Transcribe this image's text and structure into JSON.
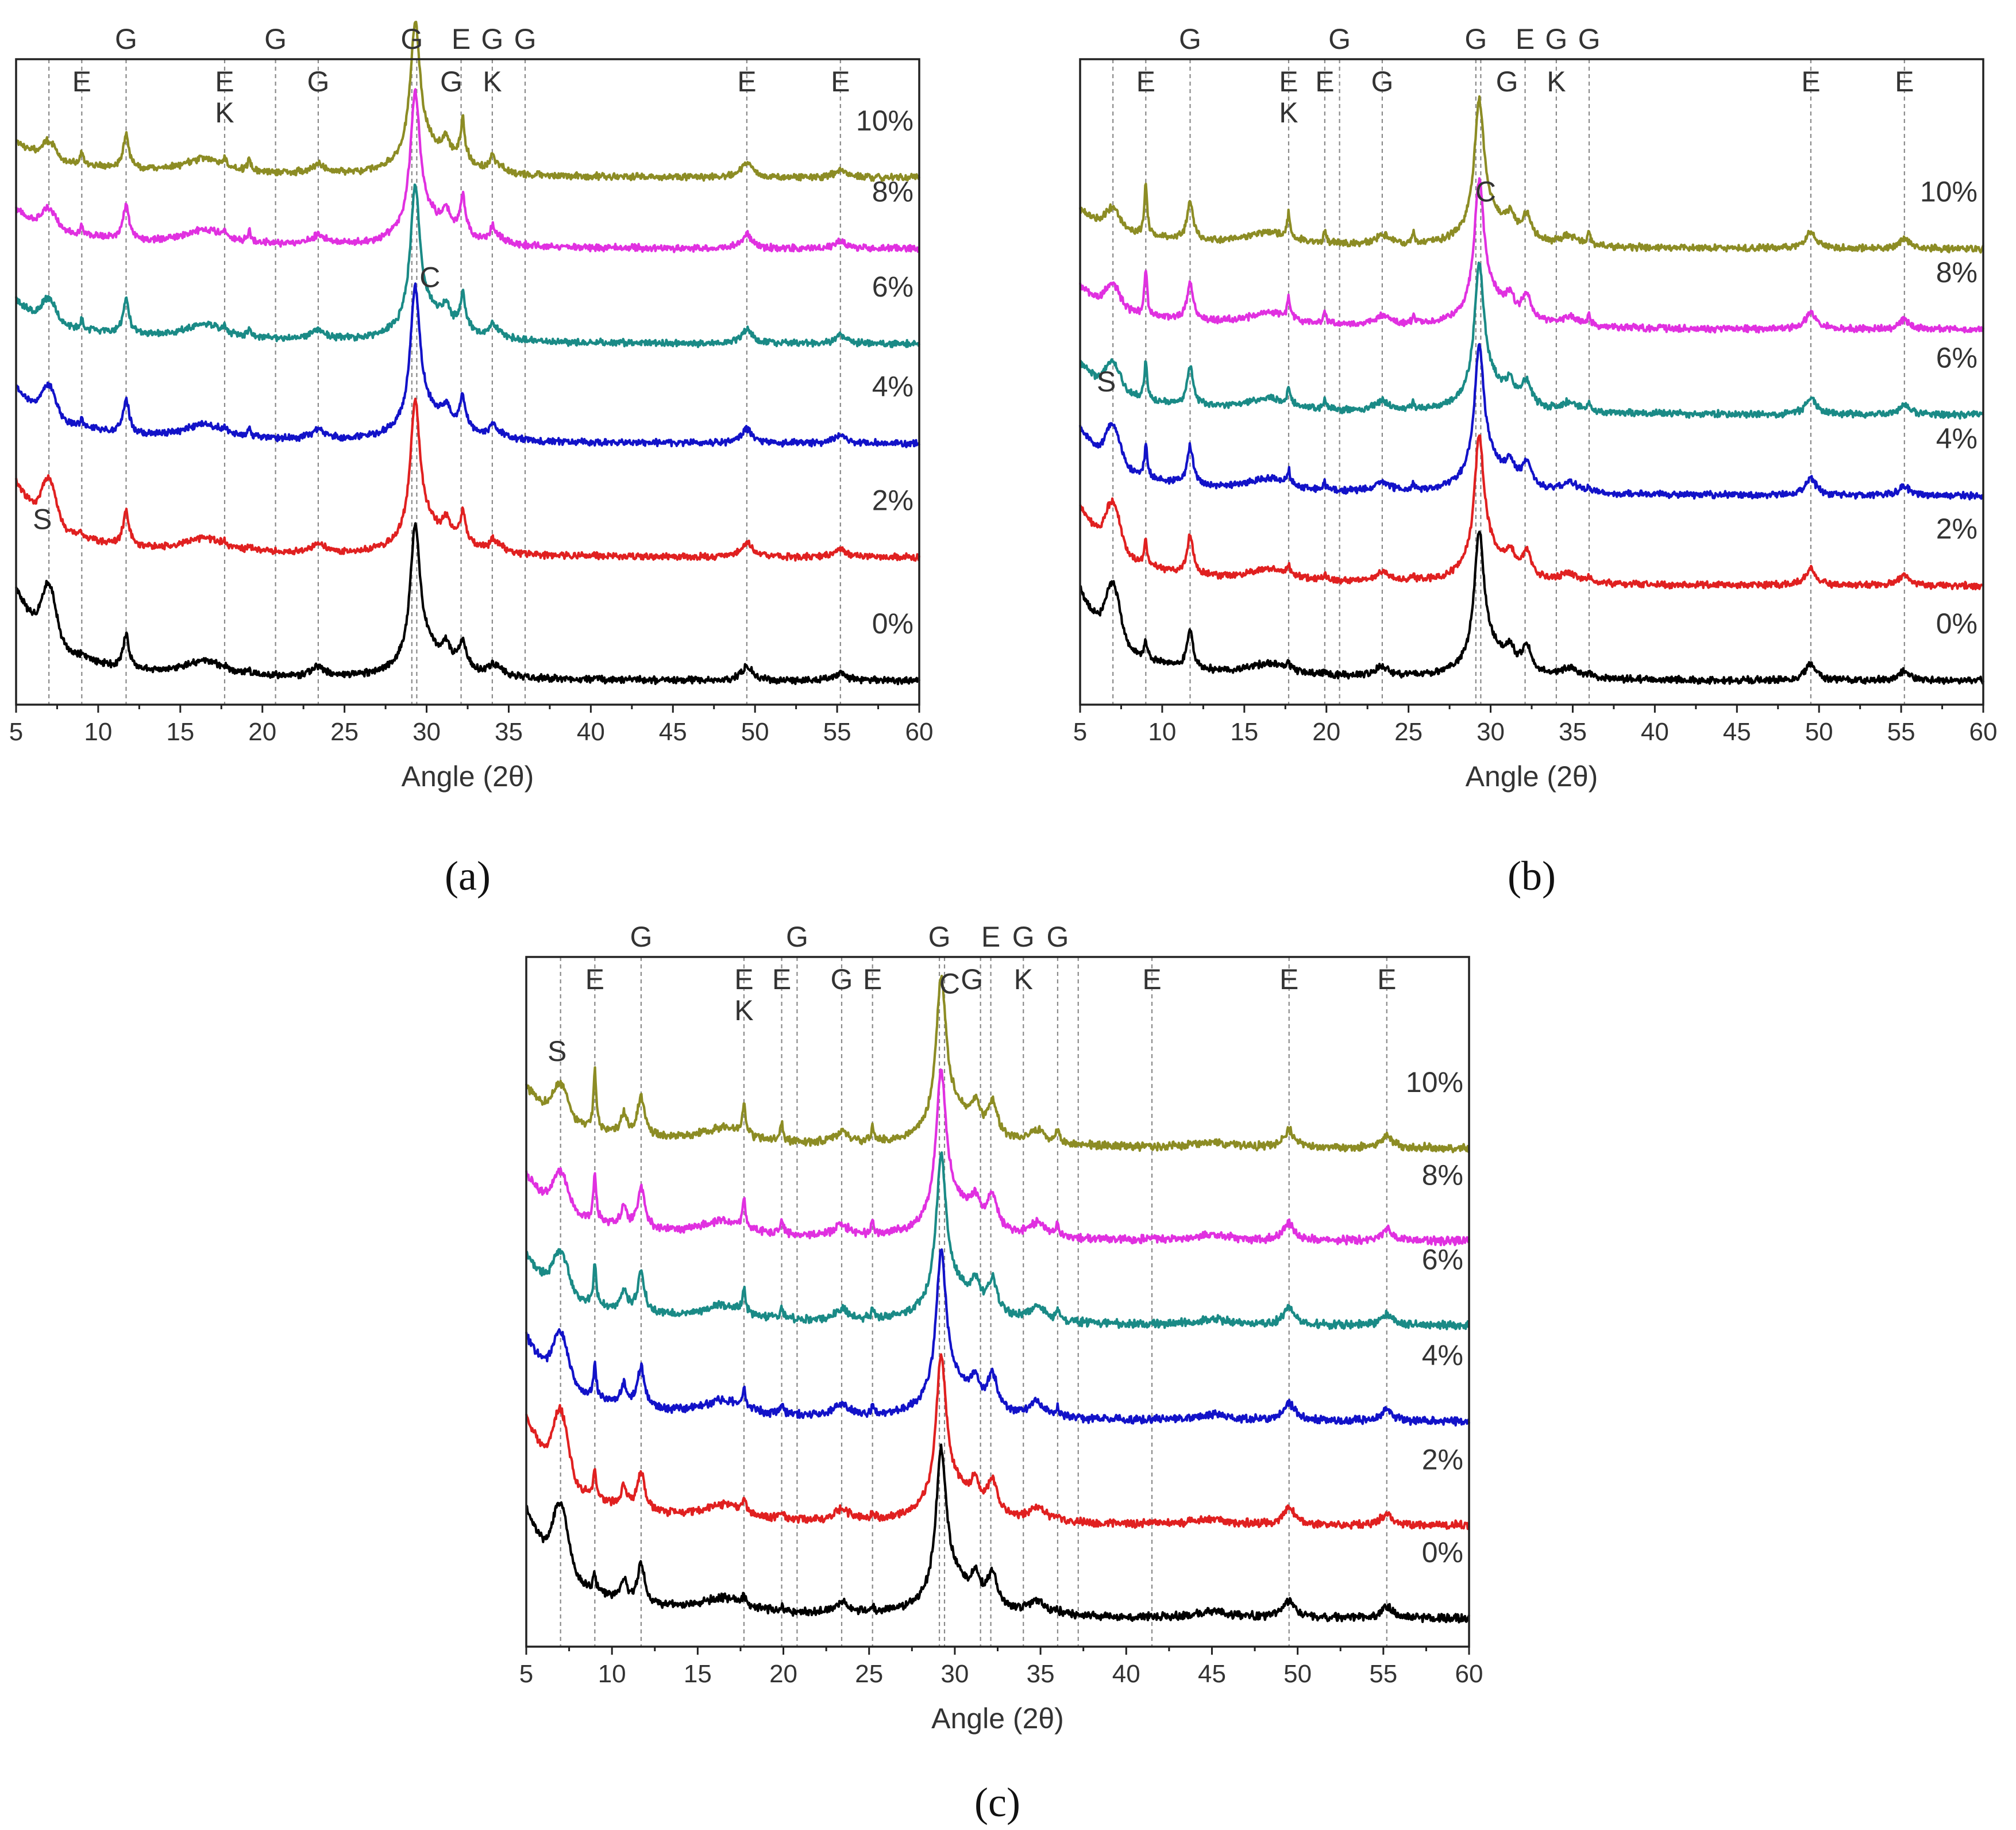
{
  "chart_data": [
    {
      "id": "a",
      "type": "line",
      "panel_label": "(a)",
      "xlabel": "Angle (2θ)",
      "ylabel": "",
      "xlim": [
        5,
        60
      ],
      "xticks": [
        5,
        10,
        15,
        20,
        25,
        30,
        35,
        40,
        45,
        50,
        55,
        60
      ],
      "reference_lines": [
        7.0,
        9.0,
        11.7,
        17.7,
        20.8,
        23.4,
        29.1,
        29.4,
        32.1,
        34.0,
        36.0,
        49.5,
        55.2
      ],
      "peak_labels": [
        {
          "text": "G",
          "x": 11.7,
          "row": 0
        },
        {
          "text": "G",
          "x": 20.8,
          "row": 0
        },
        {
          "text": "G",
          "x": 29.1,
          "row": 0
        },
        {
          "text": "E",
          "x": 32.1,
          "row": 0
        },
        {
          "text": "G",
          "x": 34.0,
          "row": 0
        },
        {
          "text": "G",
          "x": 36.0,
          "row": 0
        },
        {
          "text": "E",
          "x": 9.0,
          "row": 1
        },
        {
          "text": "E",
          "x": 17.7,
          "row": 1
        },
        {
          "text": "G",
          "x": 23.4,
          "row": 1
        },
        {
          "text": "G",
          "x": 31.5,
          "row": 1
        },
        {
          "text": "K",
          "x": 34.0,
          "row": 1
        },
        {
          "text": "E",
          "x": 49.5,
          "row": 1
        },
        {
          "text": "E",
          "x": 55.2,
          "row": 1
        },
        {
          "text": "K",
          "x": 17.7,
          "row": 2
        }
      ],
      "annotations": [
        {
          "text": "C",
          "x": 30.2,
          "y": 1.66
        },
        {
          "text": "S",
          "x": 6.6,
          "y": 0.64
        }
      ],
      "series": [
        {
          "name": "0%",
          "color": "#000000",
          "offset": 0.0,
          "s_strength": 1.0
        },
        {
          "name": "2%",
          "color": "#e02020",
          "offset": 0.52,
          "s_strength": 0.8
        },
        {
          "name": "4%",
          "color": "#1212c8",
          "offset": 1.0,
          "s_strength": 0.55
        },
        {
          "name": "6%",
          "color": "#1a8a86",
          "offset": 1.42,
          "s_strength": 0.4
        },
        {
          "name": "8%",
          "color": "#e030e0",
          "offset": 1.82,
          "s_strength": 0.35
        },
        {
          "name": "10%",
          "color": "#8c8c24",
          "offset": 2.12,
          "s_strength": 0.3
        }
      ],
      "peaks": [
        {
          "x": 11.7,
          "h": 0.14,
          "w": 0.22
        },
        {
          "x": 16.5,
          "h": 0.06,
          "w": 1.5
        },
        {
          "x": 23.4,
          "h": 0.04,
          "w": 0.5
        },
        {
          "x": 29.3,
          "h": 0.55,
          "w": 0.35
        },
        {
          "x": 29.9,
          "h": 0.12,
          "w": 1.4
        },
        {
          "x": 31.2,
          "h": 0.08,
          "w": 0.3
        },
        {
          "x": 32.2,
          "h": 0.1,
          "w": 0.35
        },
        {
          "x": 34.2,
          "h": 0.04,
          "w": 0.6
        },
        {
          "x": 49.5,
          "h": 0.06,
          "w": 0.4
        },
        {
          "x": 55.2,
          "h": 0.035,
          "w": 0.4
        }
      ],
      "ettringite_sharp": [
        {
          "x": 9.0,
          "h": 0.05
        },
        {
          "x": 17.7,
          "h": 0.03
        },
        {
          "x": 19.2,
          "h": 0.05
        },
        {
          "x": 32.2,
          "h": 0.1
        },
        {
          "x": 34.0,
          "h": 0.05
        }
      ],
      "ylim": [
        -0.1,
        2.62
      ]
    },
    {
      "id": "b",
      "type": "line",
      "panel_label": "(b)",
      "xlabel": "Angle (2θ)",
      "ylabel": "",
      "xlim": [
        5,
        60
      ],
      "xticks": [
        5,
        10,
        15,
        20,
        25,
        30,
        35,
        40,
        45,
        50,
        55,
        60
      ],
      "reference_lines": [
        7.0,
        9.0,
        11.7,
        17.7,
        19.9,
        20.8,
        23.4,
        29.1,
        29.4,
        32.1,
        34.0,
        36.0,
        49.5,
        55.2
      ],
      "peak_labels": [
        {
          "text": "G",
          "x": 11.7,
          "row": 0
        },
        {
          "text": "G",
          "x": 20.8,
          "row": 0
        },
        {
          "text": "G",
          "x": 29.1,
          "row": 0
        },
        {
          "text": "E",
          "x": 32.1,
          "row": 0
        },
        {
          "text": "G",
          "x": 34.0,
          "row": 0
        },
        {
          "text": "G",
          "x": 36.0,
          "row": 0
        },
        {
          "text": "E",
          "x": 9.0,
          "row": 1
        },
        {
          "text": "E",
          "x": 17.7,
          "row": 1
        },
        {
          "text": "E",
          "x": 19.9,
          "row": 1
        },
        {
          "text": "G",
          "x": 23.4,
          "row": 1
        },
        {
          "text": "G",
          "x": 31.0,
          "row": 1
        },
        {
          "text": "K",
          "x": 34.0,
          "row": 1
        },
        {
          "text": "E",
          "x": 49.5,
          "row": 1
        },
        {
          "text": "E",
          "x": 55.2,
          "row": 1
        },
        {
          "text": "K",
          "x": 17.7,
          "row": 2
        }
      ],
      "annotations": [
        {
          "text": "C",
          "x": 29.7,
          "y": 2.02
        },
        {
          "text": "S",
          "x": 6.6,
          "y": 1.22
        }
      ],
      "series": [
        {
          "name": "0%",
          "color": "#000000",
          "offset": 0.0,
          "s_strength": 1.0
        },
        {
          "name": "2%",
          "color": "#e02020",
          "offset": 0.4,
          "s_strength": 0.85
        },
        {
          "name": "4%",
          "color": "#1212c8",
          "offset": 0.78,
          "s_strength": 0.7
        },
        {
          "name": "6%",
          "color": "#1a8a86",
          "offset": 1.12,
          "s_strength": 0.5
        },
        {
          "name": "8%",
          "color": "#e030e0",
          "offset": 1.48,
          "s_strength": 0.4
        },
        {
          "name": "10%",
          "color": "#8c8c24",
          "offset": 1.82,
          "s_strength": 0.35
        }
      ],
      "peaks": [
        {
          "x": 11.7,
          "h": 0.16,
          "w": 0.22
        },
        {
          "x": 16.5,
          "h": 0.05,
          "w": 1.5
        },
        {
          "x": 23.4,
          "h": 0.04,
          "w": 0.5
        },
        {
          "x": 29.3,
          "h": 0.52,
          "w": 0.35
        },
        {
          "x": 29.9,
          "h": 0.12,
          "w": 1.4
        },
        {
          "x": 31.2,
          "h": 0.07,
          "w": 0.3
        },
        {
          "x": 32.2,
          "h": 0.1,
          "w": 0.35
        },
        {
          "x": 34.8,
          "h": 0.04,
          "w": 0.6
        },
        {
          "x": 49.5,
          "h": 0.07,
          "w": 0.4
        },
        {
          "x": 55.2,
          "h": 0.04,
          "w": 0.4
        }
      ],
      "ettringite_sharp": [
        {
          "x": 9.0,
          "h": 0.22
        },
        {
          "x": 17.7,
          "h": 0.1
        },
        {
          "x": 19.9,
          "h": 0.05
        },
        {
          "x": 25.3,
          "h": 0.04
        },
        {
          "x": 36.0,
          "h": 0.05
        }
      ],
      "ylim": [
        -0.1,
        2.62
      ]
    },
    {
      "id": "c",
      "type": "line",
      "panel_label": "(c)",
      "xlabel": "Angle (2θ)",
      "ylabel": "",
      "xlim": [
        5,
        60
      ],
      "xticks": [
        5,
        10,
        15,
        20,
        25,
        30,
        35,
        40,
        45,
        50,
        55,
        60
      ],
      "reference_lines": [
        7.0,
        9.0,
        11.7,
        17.7,
        19.9,
        20.8,
        23.4,
        25.2,
        29.1,
        29.4,
        31.5,
        32.1,
        34.0,
        36.0,
        37.2,
        41.5,
        49.5,
        55.2
      ],
      "peak_labels": [
        {
          "text": "G",
          "x": 11.7,
          "row": 0
        },
        {
          "text": "G",
          "x": 20.8,
          "row": 0
        },
        {
          "text": "G",
          "x": 29.1,
          "row": 0
        },
        {
          "text": "E",
          "x": 32.1,
          "row": 0
        },
        {
          "text": "G",
          "x": 34.0,
          "row": 0
        },
        {
          "text": "G",
          "x": 36.0,
          "row": 0
        },
        {
          "text": "E",
          "x": 9.0,
          "row": 1
        },
        {
          "text": "E",
          "x": 17.7,
          "row": 1
        },
        {
          "text": "E",
          "x": 19.9,
          "row": 1
        },
        {
          "text": "G",
          "x": 23.4,
          "row": 1
        },
        {
          "text": "E",
          "x": 25.2,
          "row": 1
        },
        {
          "text": "G",
          "x": 31.0,
          "row": 1
        },
        {
          "text": "K",
          "x": 34.0,
          "row": 1
        },
        {
          "text": "E",
          "x": 41.5,
          "row": 1
        },
        {
          "text": "E",
          "x": 49.5,
          "row": 1
        },
        {
          "text": "E",
          "x": 55.2,
          "row": 1
        },
        {
          "text": "K",
          "x": 17.7,
          "row": 2
        }
      ],
      "annotations": [
        {
          "text": "C",
          "x": 29.7,
          "y": 2.22
        },
        {
          "text": "S",
          "x": 6.8,
          "y": 1.98
        }
      ],
      "series": [
        {
          "name": "0%",
          "color": "#000000",
          "offset": 0.0,
          "s_strength": 1.0
        },
        {
          "name": "2%",
          "color": "#e02020",
          "offset": 0.33,
          "s_strength": 1.0
        },
        {
          "name": "4%",
          "color": "#1212c8",
          "offset": 0.7,
          "s_strength": 0.75
        },
        {
          "name": "6%",
          "color": "#1a8a86",
          "offset": 1.04,
          "s_strength": 0.6
        },
        {
          "name": "8%",
          "color": "#e030e0",
          "offset": 1.34,
          "s_strength": 0.55
        },
        {
          "name": "10%",
          "color": "#8c8c24",
          "offset": 1.67,
          "s_strength": 0.5
        }
      ],
      "peaks": [
        {
          "x": 10.7,
          "h": 0.07,
          "w": 0.2
        },
        {
          "x": 11.7,
          "h": 0.14,
          "w": 0.25
        },
        {
          "x": 16.5,
          "h": 0.05,
          "w": 1.5
        },
        {
          "x": 23.4,
          "h": 0.04,
          "w": 0.5
        },
        {
          "x": 29.2,
          "h": 0.5,
          "w": 0.35
        },
        {
          "x": 29.9,
          "h": 0.12,
          "w": 1.4
        },
        {
          "x": 31.2,
          "h": 0.08,
          "w": 0.3
        },
        {
          "x": 32.2,
          "h": 0.12,
          "w": 0.35
        },
        {
          "x": 34.8,
          "h": 0.05,
          "w": 0.6
        },
        {
          "x": 45.0,
          "h": 0.02,
          "w": 1.2
        },
        {
          "x": 49.5,
          "h": 0.06,
          "w": 0.4
        },
        {
          "x": 55.2,
          "h": 0.04,
          "w": 0.4
        }
      ],
      "ettringite_sharp": [
        {
          "x": 9.0,
          "h": 0.2
        },
        {
          "x": 17.7,
          "h": 0.12
        },
        {
          "x": 19.9,
          "h": 0.06
        },
        {
          "x": 25.2,
          "h": 0.05
        },
        {
          "x": 36.0,
          "h": 0.05
        }
      ],
      "ylim": [
        -0.1,
        2.35
      ]
    }
  ]
}
